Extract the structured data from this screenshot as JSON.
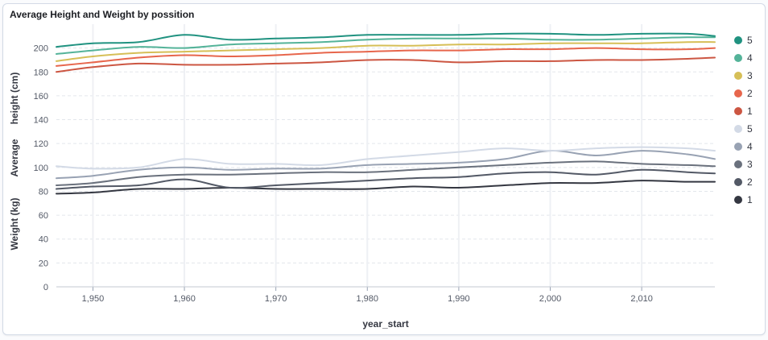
{
  "panel": {
    "title": "Average Height and Weight by possition"
  },
  "chart_data": {
    "type": "line",
    "title": "Average Height and Weight by possition",
    "xlabel": "year_start",
    "ylabel_parts": [
      "Weight (kg)",
      "Average",
      "height (cm)"
    ],
    "xlim": [
      1946,
      2018
    ],
    "ylim": [
      0,
      220
    ],
    "x_ticks": [
      1950,
      1960,
      1970,
      1980,
      1990,
      2000,
      2010
    ],
    "x_tick_labels": [
      "1,950",
      "1,960",
      "1,970",
      "1,980",
      "1,990",
      "2,000",
      "2,010"
    ],
    "y_ticks": [
      0,
      20,
      40,
      60,
      80,
      100,
      120,
      140,
      160,
      180,
      200
    ],
    "grid": {
      "x": true,
      "y": true
    },
    "legend_position": "right",
    "x": [
      1946,
      1950,
      1955,
      1960,
      1965,
      1970,
      1975,
      1980,
      1985,
      1990,
      1995,
      2000,
      2005,
      2010,
      2015,
      2018
    ],
    "series": [
      {
        "name": "5",
        "group": "height",
        "color": "#209280",
        "values": [
          201,
          204,
          205,
          211,
          207,
          208,
          209,
          211,
          211,
          211,
          212,
          212,
          211,
          212,
          212,
          210
        ]
      },
      {
        "name": "4",
        "group": "height",
        "color": "#54b399",
        "values": [
          195,
          198,
          201,
          200,
          203,
          204,
          205,
          207,
          208,
          208,
          208,
          207,
          207,
          208,
          209,
          209
        ]
      },
      {
        "name": "3",
        "group": "height",
        "color": "#d6bf57",
        "values": [
          189,
          193,
          196,
          197,
          198,
          199,
          200,
          202,
          202,
          203,
          203,
          204,
          204,
          204,
          205,
          205
        ]
      },
      {
        "name": "2",
        "group": "height",
        "color": "#e7664c",
        "values": [
          185,
          188,
          192,
          194,
          193,
          194,
          196,
          197,
          198,
          198,
          199,
          199,
          200,
          199,
          199,
          200
        ]
      },
      {
        "name": "1",
        "group": "height",
        "color": "#cc5642",
        "values": [
          180,
          184,
          187,
          186,
          186,
          187,
          188,
          190,
          190,
          188,
          189,
          189,
          190,
          190,
          191,
          192
        ]
      },
      {
        "name": "5",
        "group": "weight",
        "color": "#d3dae6",
        "values": [
          101,
          99,
          100,
          107,
          103,
          103,
          102,
          107,
          110,
          113,
          116,
          114,
          116,
          117,
          116,
          114
        ]
      },
      {
        "name": "4",
        "group": "weight",
        "color": "#98a2b3",
        "values": [
          91,
          93,
          98,
          100,
          98,
          99,
          99,
          102,
          103,
          104,
          107,
          114,
          110,
          114,
          111,
          107
        ]
      },
      {
        "name": "3",
        "group": "weight",
        "color": "#6a717d",
        "values": [
          85,
          87,
          92,
          94,
          94,
          95,
          96,
          96,
          98,
          100,
          102,
          104,
          105,
          103,
          102,
          101
        ]
      },
      {
        "name": "2",
        "group": "weight",
        "color": "#535966",
        "values": [
          82,
          84,
          85,
          90,
          83,
          85,
          87,
          89,
          91,
          92,
          95,
          96,
          94,
          98,
          96,
          95
        ]
      },
      {
        "name": "1",
        "group": "weight",
        "color": "#343741",
        "values": [
          78,
          79,
          82,
          82,
          83,
          82,
          82,
          82,
          84,
          83,
          85,
          87,
          87,
          89,
          88,
          88
        ]
      }
    ]
  }
}
